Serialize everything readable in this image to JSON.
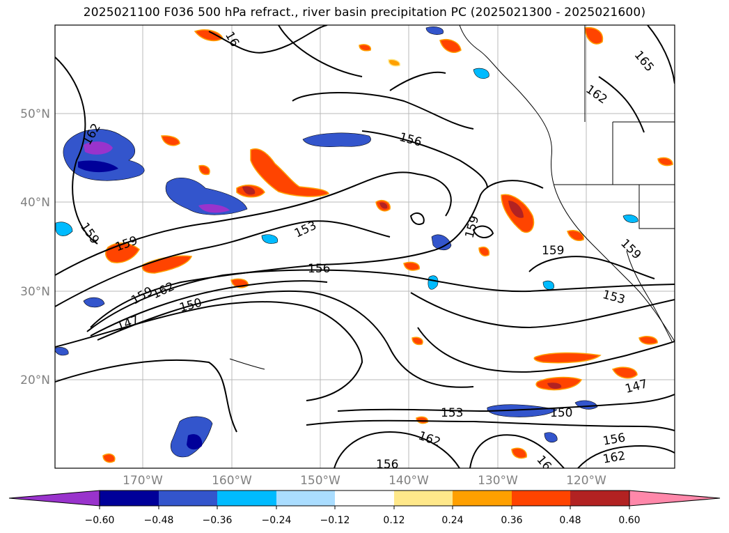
{
  "title": "2025021100 F036 500 hPa refract., river basin precipitation PC (2025021300 - 2025021600)",
  "map": {
    "lat_ticks": [
      "50°N",
      "40°N",
      "30°N",
      "20°N"
    ],
    "lon_ticks": [
      "170°W",
      "160°W",
      "150°W",
      "140°W",
      "130°W",
      "120°W"
    ],
    "contour_labels": [
      "162",
      "165",
      "162",
      "156",
      "153",
      "159",
      "159",
      "159",
      "156",
      "159",
      "162",
      "150",
      "147",
      "159",
      "153",
      "147",
      "153",
      "150",
      "162",
      "156",
      "162",
      "159",
      "16",
      "156",
      "16"
    ]
  },
  "colorbar": {
    "ticks": [
      "−0.60",
      "−0.48",
      "−0.36",
      "−0.24",
      "−0.12",
      "0.12",
      "0.24",
      "0.36",
      "0.48",
      "0.60"
    ],
    "colors": [
      "#9933cc",
      "#000099",
      "#3355cc",
      "#00bbff",
      "#aaddff",
      "#ffffff",
      "#ffe88a",
      "#ffa000",
      "#ff4400",
      "#b22222",
      "#ff88aa"
    ]
  }
}
